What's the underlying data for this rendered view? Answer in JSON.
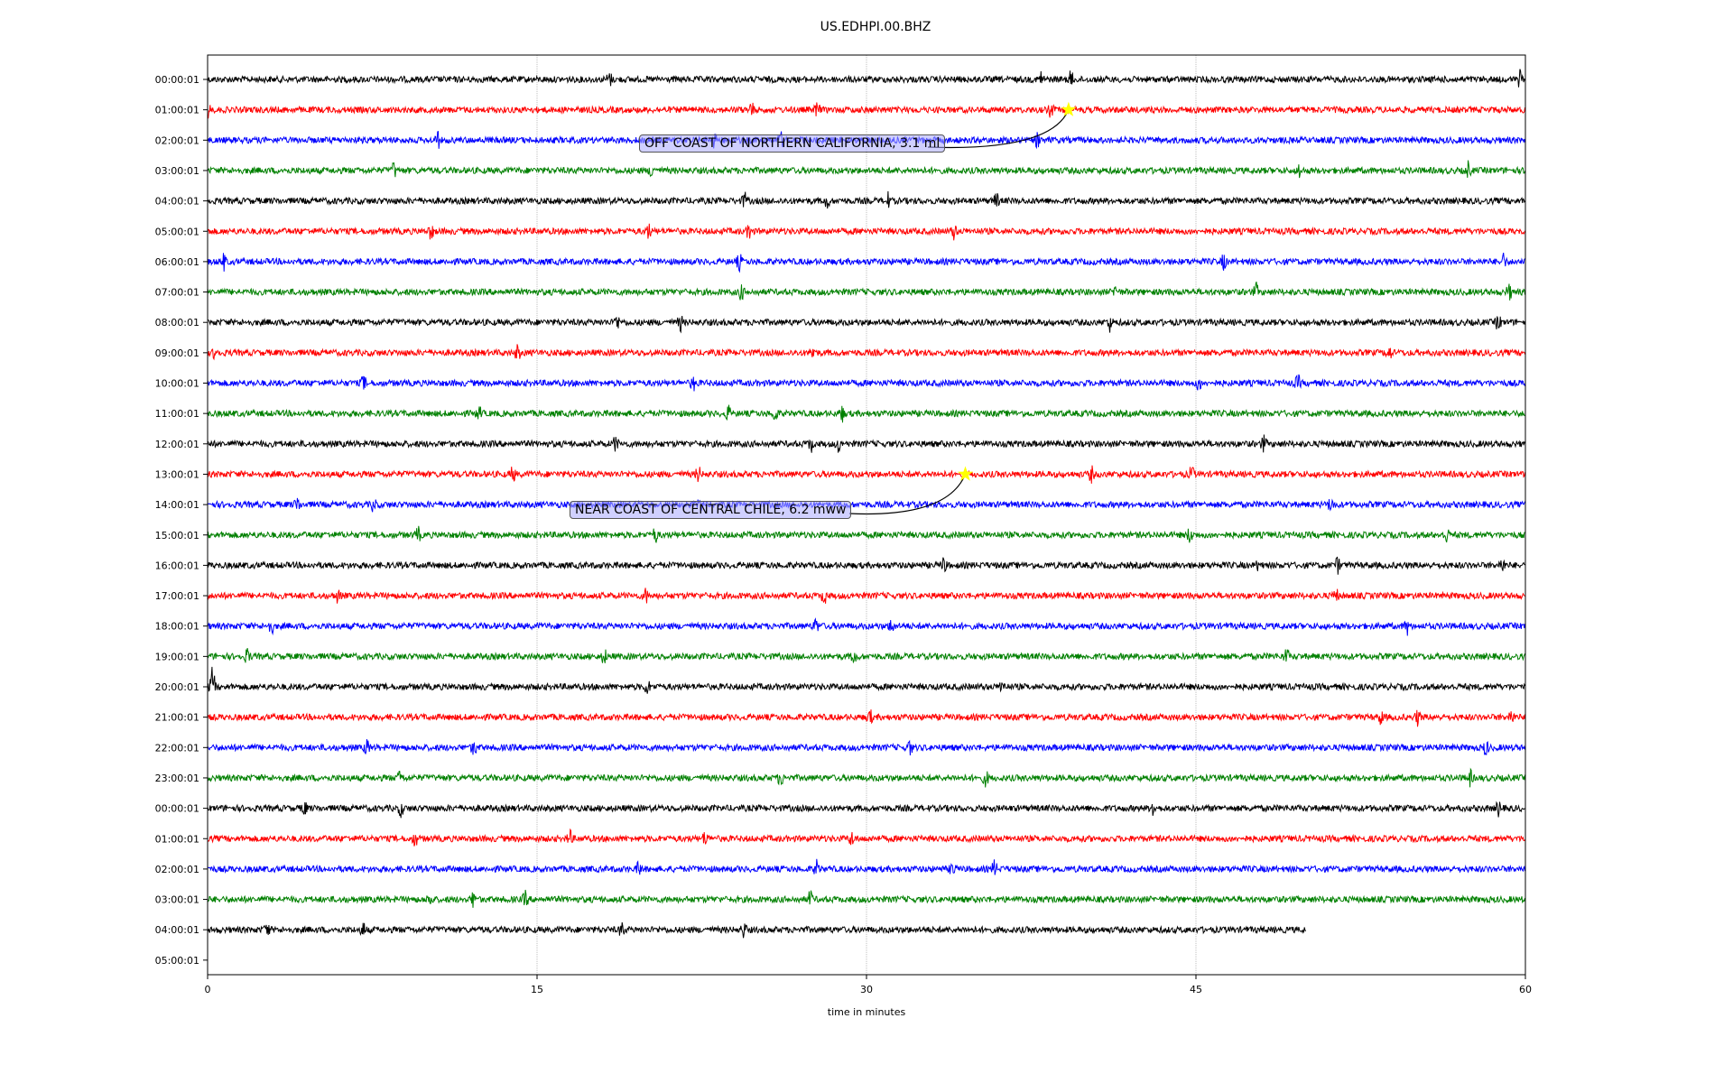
{
  "chart_data": {
    "type": "line",
    "title": "US.EDHPI.00.BHZ",
    "xlabel": "time in minutes",
    "ylabel": "",
    "xlim": [
      0,
      60
    ],
    "xticks": [
      "0",
      "15",
      "30",
      "45",
      "60"
    ],
    "grid": "vertical dotted at x ticks",
    "row_labels": [
      "00:00:01",
      "01:00:01",
      "02:00:01",
      "03:00:01",
      "04:00:01",
      "05:00:01",
      "06:00:01",
      "07:00:01",
      "08:00:01",
      "09:00:01",
      "10:00:01",
      "11:00:01",
      "12:00:01",
      "13:00:01",
      "14:00:01",
      "15:00:01",
      "16:00:01",
      "17:00:01",
      "18:00:01",
      "19:00:01",
      "20:00:01",
      "21:00:01",
      "22:00:01",
      "23:00:01",
      "00:00:01",
      "01:00:01",
      "02:00:01",
      "03:00:01",
      "04:00:01",
      "05:00:01"
    ],
    "trace_colors": [
      "#000000",
      "#ff0000",
      "#0000ff",
      "#008000"
    ],
    "last_trace_end_minutes": 50,
    "events": [
      {
        "label": "OFF COAST OF NORTHERN CALIFORNIA, 3.1 ml",
        "row": 1,
        "minute": 39.2,
        "marker": "star",
        "marker_color": "#ffff00"
      },
      {
        "label": "NEAR COAST OF CENTRAL CHILE, 6.2 mww",
        "row": 13,
        "minute": 34.5,
        "marker": "star",
        "marker_color": "#ffff00"
      }
    ]
  }
}
